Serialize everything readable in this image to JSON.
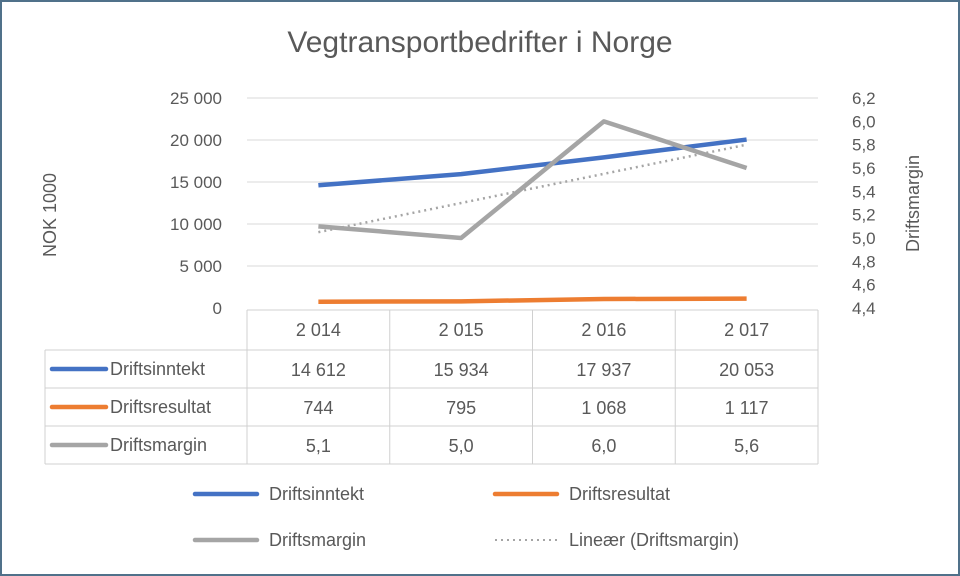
{
  "chart_data": {
    "type": "line",
    "title": "Vegtransportbedrifter i Norge",
    "ylabel": "NOK 1000",
    "y2label": "Driftsmargin",
    "categories": [
      "2 014",
      "2 015",
      "2 016",
      "2 017"
    ],
    "ylim": [
      0,
      25000
    ],
    "y2lim": [
      4.4,
      6.2
    ],
    "yticks": [
      "0",
      "5 000",
      "10 000",
      "15 000",
      "20 000",
      "25 000"
    ],
    "yticks_values": [
      0,
      5000,
      10000,
      15000,
      20000,
      25000
    ],
    "y2ticks": [
      "4,4",
      "4,6",
      "4,8",
      "5,0",
      "5,2",
      "5,4",
      "5,6",
      "5,8",
      "6,0",
      "6,2"
    ],
    "y2ticks_values": [
      4.4,
      4.6,
      4.8,
      5.0,
      5.2,
      5.4,
      5.6,
      5.8,
      6.0,
      6.2
    ],
    "grid": true,
    "legend_position": "bottom",
    "series": [
      {
        "name": "Driftsinntekt",
        "axis": "left",
        "color": "#4472c4",
        "values": [
          14612,
          15934,
          17937,
          20053
        ],
        "labels": [
          "14 612",
          "15 934",
          "17 937",
          "20 053"
        ]
      },
      {
        "name": "Driftsresultat",
        "axis": "left",
        "color": "#ed7d31",
        "values": [
          744,
          795,
          1068,
          1117
        ],
        "labels": [
          "744",
          "795",
          "1 068",
          "1 117"
        ]
      },
      {
        "name": "Driftsmargin",
        "axis": "right",
        "color": "#a5a5a5",
        "values": [
          5.1,
          5.0,
          6.0,
          5.6
        ],
        "labels": [
          "5,1",
          "5,0",
          "6,0",
          "5,6"
        ]
      }
    ],
    "trendline": {
      "name": "Lineær (Driftsmargin)",
      "of": "Driftsmargin",
      "type": "linear",
      "color": "#a5a5a5",
      "style": "dotted"
    }
  }
}
